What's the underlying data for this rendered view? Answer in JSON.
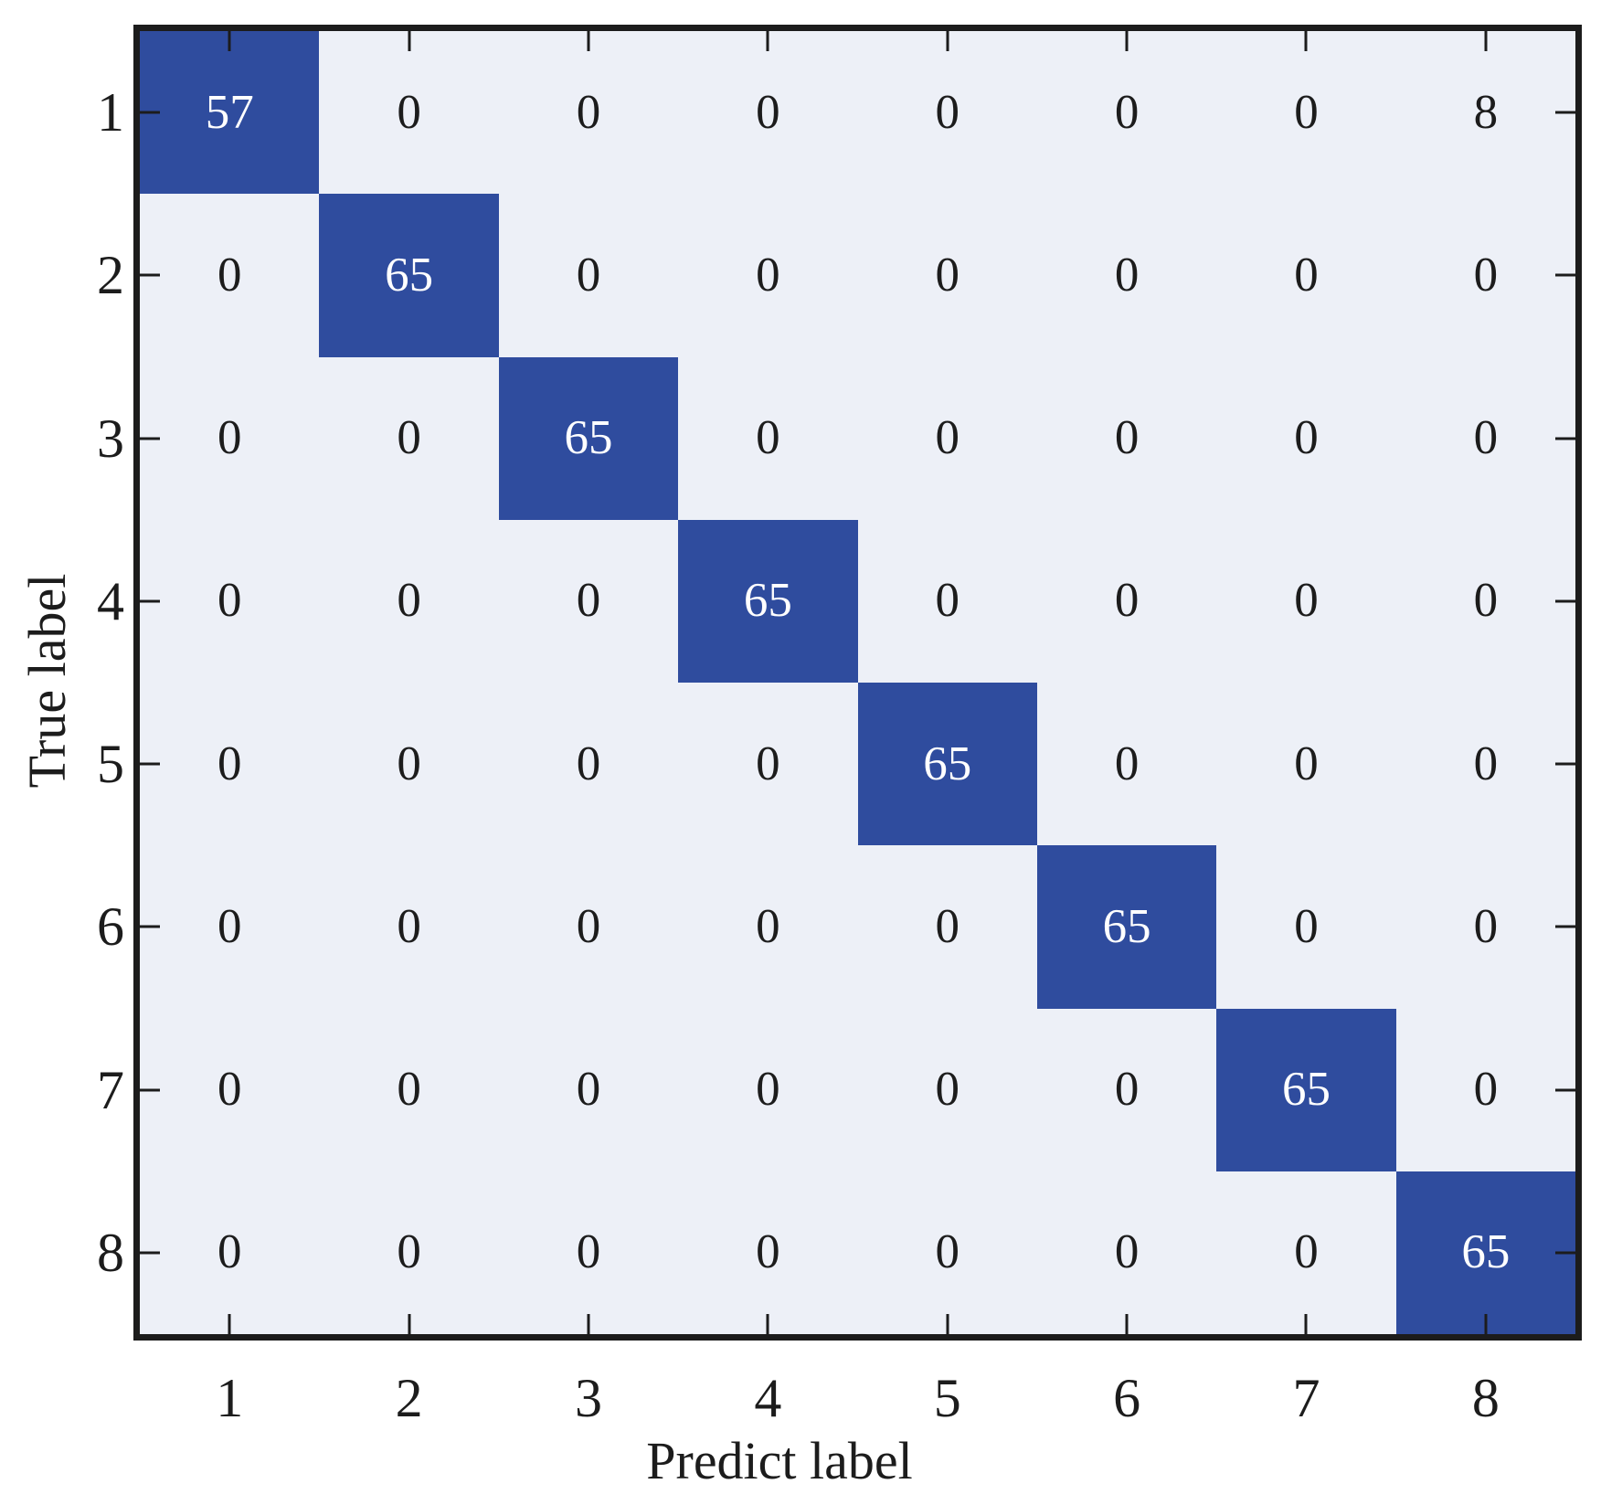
{
  "chart_data": {
    "type": "heatmap",
    "subtype": "confusion-matrix",
    "title": "",
    "xlabel": "Predict label",
    "ylabel": "True label",
    "x_ticklabels": [
      "1",
      "2",
      "3",
      "4",
      "5",
      "6",
      "7",
      "8"
    ],
    "y_ticklabels": [
      "1",
      "2",
      "3",
      "4",
      "5",
      "6",
      "7",
      "8"
    ],
    "matrix": [
      [
        57,
        0,
        0,
        0,
        0,
        0,
        0,
        8
      ],
      [
        0,
        65,
        0,
        0,
        0,
        0,
        0,
        0
      ],
      [
        0,
        0,
        65,
        0,
        0,
        0,
        0,
        0
      ],
      [
        0,
        0,
        0,
        65,
        0,
        0,
        0,
        0
      ],
      [
        0,
        0,
        0,
        0,
        65,
        0,
        0,
        0
      ],
      [
        0,
        0,
        0,
        0,
        0,
        65,
        0,
        0
      ],
      [
        0,
        0,
        0,
        0,
        0,
        0,
        65,
        0
      ],
      [
        0,
        0,
        0,
        0,
        0,
        0,
        0,
        65
      ]
    ],
    "grid": "off",
    "legend": "none",
    "ticks": "inward-all-sides",
    "colors": {
      "diagonal_cell": "#2f4c9e",
      "off_diagonal_cell": "#edf0f7",
      "diagonal_text": "#ffffff",
      "off_diagonal_text": "#1c1c1c",
      "frame": "#1c1c1c",
      "background": "#ffffff"
    }
  }
}
